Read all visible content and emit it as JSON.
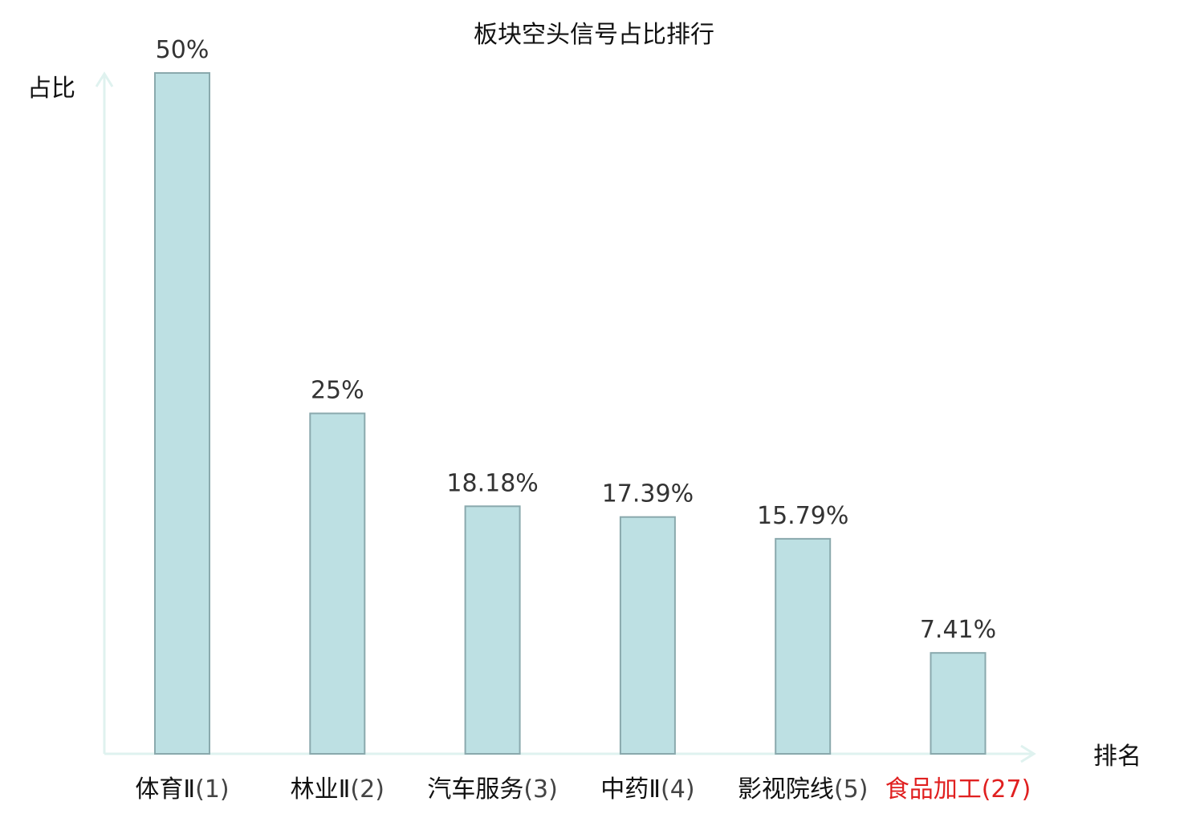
{
  "chart_data": {
    "type": "bar",
    "title": "板块空头信号占比排行",
    "ylabel": "占比",
    "xlabel": "排名",
    "ylim": [
      0,
      50
    ],
    "categories": [
      {
        "name": "体育Ⅱ",
        "rank": "(1)",
        "highlight": false
      },
      {
        "name": "林业Ⅱ",
        "rank": "(2)",
        "highlight": false
      },
      {
        "name": "汽车服务",
        "rank": "(3)",
        "highlight": false
      },
      {
        "name": "中药Ⅱ",
        "rank": "(4)",
        "highlight": false
      },
      {
        "name": "影视院线",
        "rank": "(5)",
        "highlight": false
      },
      {
        "name": "食品加工",
        "rank": "(27)",
        "highlight": true
      }
    ],
    "values": [
      50,
      25,
      18.18,
      17.39,
      15.79,
      7.41
    ],
    "value_labels": [
      "50%",
      "25%",
      "18.18%",
      "17.39%",
      "15.79%",
      "7.41%"
    ],
    "grid": false,
    "legend": "none"
  },
  "colors": {
    "bar_fill": "#bde0e3",
    "bar_stroke": "#8aa9ad",
    "axis": "#dff2ef",
    "highlight": "#e02020",
    "rank_text": "#444444",
    "value_text": "#333333"
  }
}
